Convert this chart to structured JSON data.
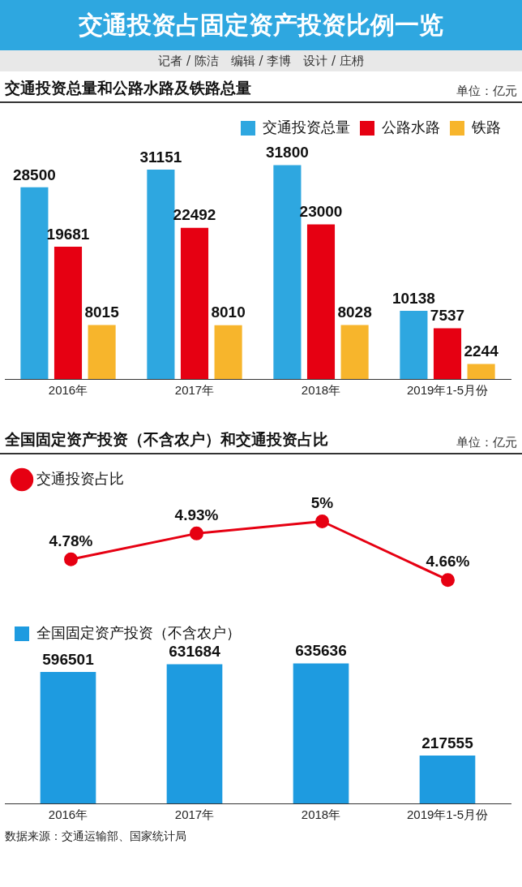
{
  "chart_data": [
    {
      "type": "bar",
      "title": "交通投资占固定资产投资比例一览",
      "subtitle": "交通投资总量和公路水路及铁路总量",
      "annotations": [
        "记者 / 陈洁　编辑 / 李博　设计 / 庄枬",
        "单位：亿元"
      ],
      "categories": [
        "2016年",
        "2017年",
        "2018年",
        "2019年1-5月份"
      ],
      "series": [
        {
          "name": "交通投资总量",
          "color": "#2ea7e0",
          "values": [
            28500,
            31151,
            31800,
            10138
          ]
        },
        {
          "name": "公路水路",
          "color": "#e60012",
          "values": [
            19681,
            22492,
            23000,
            7537
          ]
        },
        {
          "name": "铁路",
          "color": "#f7b52c",
          "values": [
            8015,
            8010,
            8028,
            2244
          ]
        }
      ],
      "data_labels": true,
      "legend": "top right",
      "grid": false,
      "tick_labels": "x"
    },
    {
      "type": "line",
      "title": "全国固定资产投资（不含农户）和交通投资占比",
      "annotations": [
        "单位：亿元"
      ],
      "categories": [
        null,
        null,
        null,
        null
      ],
      "series": [
        {
          "name": "交通投资占比",
          "color": "#e60012",
          "marker": "circle",
          "line_style": "solid",
          "values": [
            4.78,
            4.93,
            5,
            4.66
          ],
          "value_labels": [
            "4.78%",
            "4.93%",
            "5%",
            "4.66%"
          ]
        }
      ],
      "legend": "top left",
      "grid": false,
      "tick_labels": false
    },
    {
      "type": "bar",
      "annotations": [
        "数据来源：交通运输部、国家统计局"
      ],
      "categories": [
        "2016年",
        "2017年",
        "2018年",
        "2019年1-5月份"
      ],
      "series": [
        {
          "name": "全国固定资产投资（不含农户）",
          "color": "#1e9be0",
          "values": [
            596501,
            631684,
            635636,
            217555
          ]
        }
      ],
      "data_labels": true,
      "legend": "top left",
      "grid": false,
      "tick_labels": "x"
    }
  ]
}
